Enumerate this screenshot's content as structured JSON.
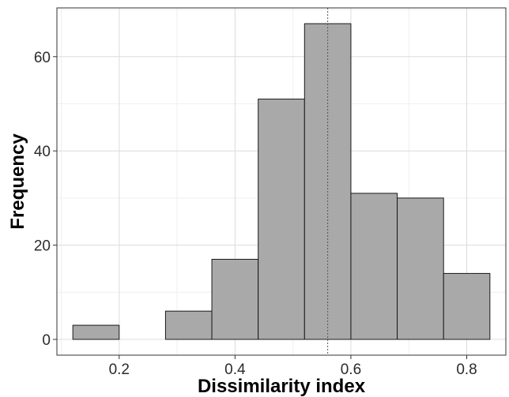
{
  "chart_data": {
    "type": "bar",
    "title": "",
    "xlabel": "Dissimilarity index",
    "ylabel": "Frequency",
    "bins": [
      {
        "x0": 0.12,
        "x1": 0.2,
        "count": 3
      },
      {
        "x0": 0.2,
        "x1": 0.28,
        "count": 0
      },
      {
        "x0": 0.28,
        "x1": 0.36,
        "count": 6
      },
      {
        "x0": 0.36,
        "x1": 0.44,
        "count": 17
      },
      {
        "x0": 0.44,
        "x1": 0.52,
        "count": 51
      },
      {
        "x0": 0.52,
        "x1": 0.6,
        "count": 67
      },
      {
        "x0": 0.6,
        "x1": 0.68,
        "count": 31
      },
      {
        "x0": 0.68,
        "x1": 0.76,
        "count": 30
      },
      {
        "x0": 0.76,
        "x1": 0.84,
        "count": 14
      }
    ],
    "reference_line": {
      "x": 0.56,
      "style": "dotted"
    },
    "xlim": [
      0.0925,
      0.8675
    ],
    "ylim": [
      -3.35,
      70.35
    ],
    "x_ticks": [
      {
        "value": 0.2,
        "label": "0.2"
      },
      {
        "value": 0.4,
        "label": "0.4"
      },
      {
        "value": 0.6,
        "label": "0.6"
      },
      {
        "value": 0.8,
        "label": "0.8"
      }
    ],
    "y_ticks": [
      {
        "value": 0,
        "label": "0"
      },
      {
        "value": 20,
        "label": "20"
      },
      {
        "value": 40,
        "label": "40"
      },
      {
        "value": 60,
        "label": "60"
      }
    ],
    "grid": true,
    "colors": {
      "bar_fill": "#a9a9a9",
      "bar_stroke": "#1a1a1a",
      "grid_major": "#dcdcdc",
      "grid_minor": "#efefef",
      "panel_border": "#333333",
      "reference_line": "#555555"
    }
  }
}
